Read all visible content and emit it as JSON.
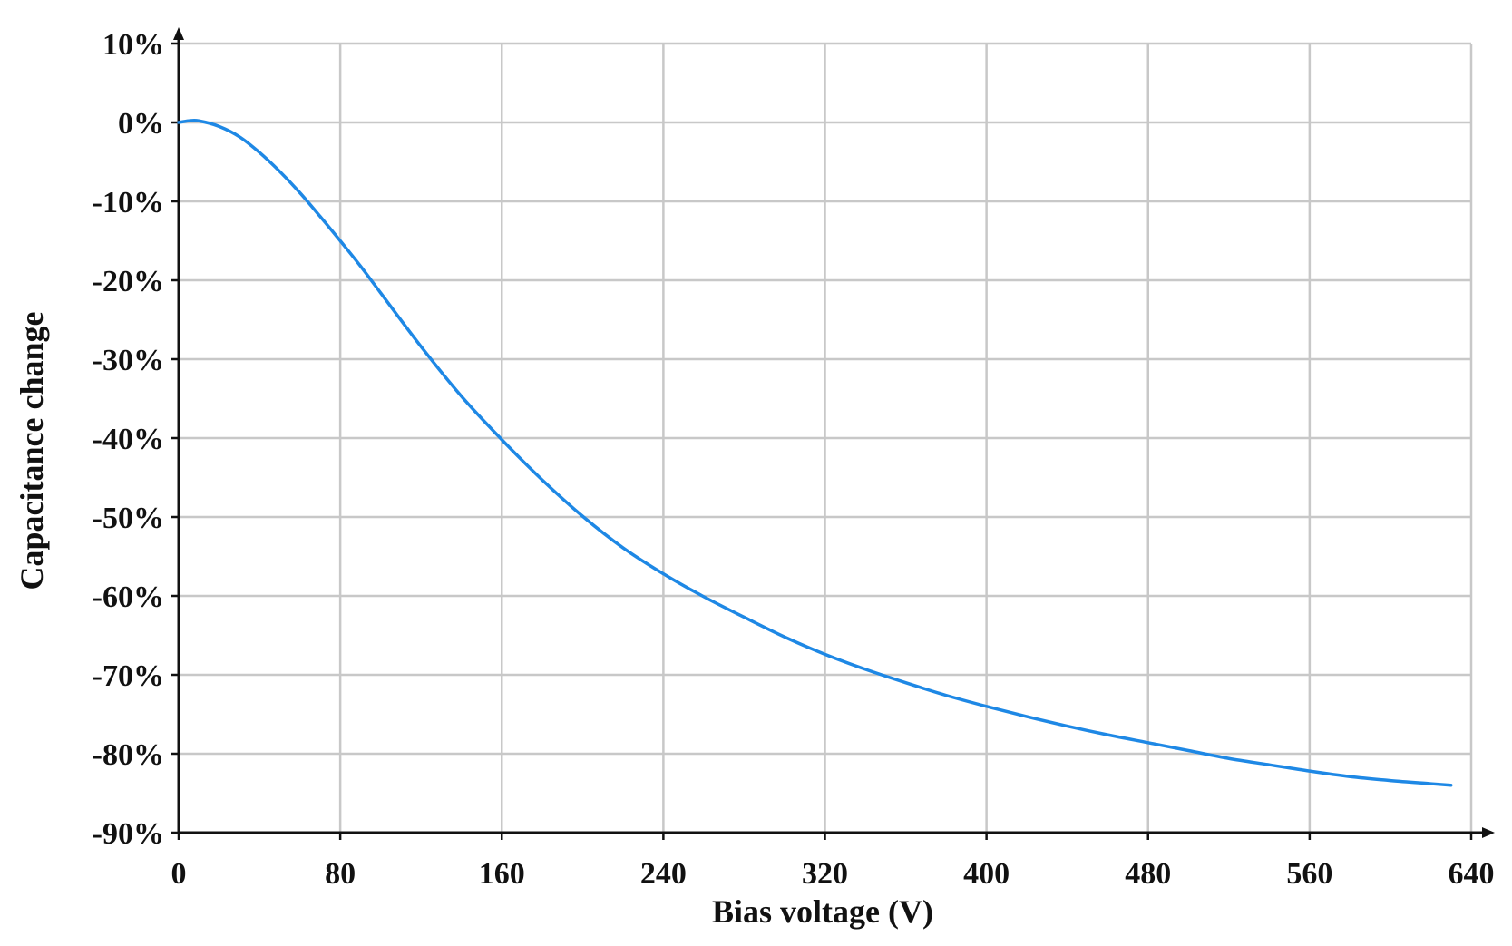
{
  "chart_data": {
    "type": "line",
    "title": "",
    "xlabel": "Bias voltage (V)",
    "ylabel": "Capacitance change",
    "xlim": [
      0,
      640
    ],
    "ylim": [
      -90,
      10
    ],
    "x_ticks": [
      0,
      80,
      160,
      240,
      320,
      400,
      480,
      560,
      640
    ],
    "x_tick_labels": [
      "0",
      "80",
      "160",
      "240",
      "320",
      "400",
      "480",
      "560",
      "640"
    ],
    "y_ticks": [
      10,
      0,
      -10,
      -20,
      -30,
      -40,
      -50,
      -60,
      -70,
      -80,
      -90
    ],
    "y_tick_labels": [
      "10%",
      "0%",
      "-10%",
      "-20%",
      "-30%",
      "-40%",
      "-50%",
      "-60%",
      "-70%",
      "-80%",
      "-90%"
    ],
    "grid": true,
    "legend": "none",
    "series": [
      {
        "color": "#1e88e5",
        "x": [
          0,
          5,
          10,
          20,
          30,
          40,
          50,
          60,
          70,
          80,
          90,
          100,
          120,
          140,
          160,
          180,
          200,
          220,
          240,
          260,
          280,
          300,
          320,
          340,
          360,
          380,
          400,
          420,
          440,
          460,
          480,
          500,
          520,
          540,
          560,
          580,
          600,
          620,
          630
        ],
        "y": [
          0,
          0.2,
          0.2,
          -0.5,
          -1.8,
          -3.8,
          -6.2,
          -8.9,
          -11.9,
          -15.0,
          -18.2,
          -21.6,
          -28.4,
          -34.7,
          -40.2,
          -45.3,
          -49.9,
          -53.9,
          -57.2,
          -60.1,
          -62.7,
          -65.2,
          -67.4,
          -69.3,
          -71.0,
          -72.6,
          -74.0,
          -75.3,
          -76.5,
          -77.6,
          -78.6,
          -79.6,
          -80.6,
          -81.4,
          -82.2,
          -82.9,
          -83.4,
          -83.8,
          -84.0
        ]
      }
    ]
  }
}
